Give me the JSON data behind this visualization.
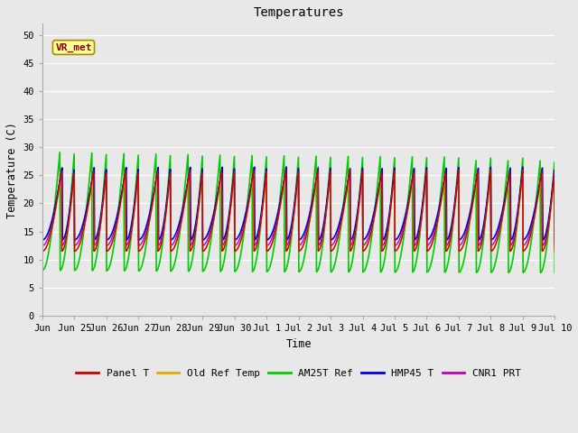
{
  "title": "Temperatures",
  "ylabel": "Temperature (C)",
  "xlabel": "Time",
  "annotation": "VR_met",
  "ylim": [
    0,
    52
  ],
  "yticks": [
    0,
    5,
    10,
    15,
    20,
    25,
    30,
    35,
    40,
    45,
    50
  ],
  "fig_bg_color": "#e8e8e8",
  "series": {
    "Panel T": {
      "color": "#cc0000",
      "lw": 1.0
    },
    "Old Ref Temp": {
      "color": "#ddaa00",
      "lw": 1.0
    },
    "AM25T Ref": {
      "color": "#00cc00",
      "lw": 1.2
    },
    "HMP45 T": {
      "color": "#0000dd",
      "lw": 1.2
    },
    "CNR1 PRT": {
      "color": "#bb00bb",
      "lw": 1.0
    }
  },
  "tick_labels": [
    "Jun",
    "Jun 25",
    "Jun 26",
    "Jun 27",
    "Jun 28",
    "Jun 29",
    "Jun 30",
    "Jul 1",
    "Jul 2",
    "Jul 3",
    "Jul 4",
    "Jul 5",
    "Jul 6",
    "Jul 7",
    "Jul 8",
    "Jul 9",
    "Jul 10"
  ],
  "legend_labels": [
    "Panel T",
    "Old Ref Temp",
    "AM25T Ref",
    "HMP45 T",
    "CNR1 PRT"
  ]
}
